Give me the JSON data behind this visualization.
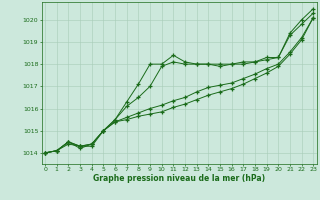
{
  "x": [
    0,
    1,
    2,
    3,
    4,
    5,
    6,
    7,
    8,
    9,
    10,
    11,
    12,
    13,
    14,
    15,
    16,
    17,
    18,
    19,
    20,
    21,
    22,
    23
  ],
  "line1": [
    1014.0,
    1014.1,
    1014.4,
    1014.3,
    1014.3,
    1015.0,
    1015.5,
    1016.3,
    1017.1,
    1018.0,
    1018.0,
    1018.4,
    1018.1,
    1018.0,
    1018.0,
    1017.9,
    1018.0,
    1018.0,
    1018.1,
    1018.3,
    1018.3,
    1019.4,
    1020.0,
    1020.5
  ],
  "line2": [
    1014.0,
    1014.1,
    1014.5,
    1014.2,
    1014.4,
    1015.0,
    1015.5,
    1016.1,
    1016.5,
    1017.0,
    1017.9,
    1018.1,
    1018.0,
    1018.0,
    1018.0,
    1018.0,
    1018.0,
    1018.1,
    1018.1,
    1018.2,
    1018.3,
    1019.3,
    1019.8,
    1020.3
  ],
  "line3": [
    1014.0,
    1014.1,
    1014.5,
    1014.3,
    1014.4,
    1015.0,
    1015.4,
    1015.5,
    1015.65,
    1015.75,
    1015.85,
    1016.05,
    1016.2,
    1016.4,
    1016.6,
    1016.75,
    1016.9,
    1017.1,
    1017.35,
    1017.6,
    1017.9,
    1018.45,
    1019.1,
    1020.1
  ],
  "line4": [
    1014.0,
    1014.1,
    1014.5,
    1014.3,
    1014.4,
    1015.0,
    1015.4,
    1015.6,
    1015.8,
    1016.0,
    1016.15,
    1016.35,
    1016.5,
    1016.75,
    1016.95,
    1017.05,
    1017.15,
    1017.35,
    1017.55,
    1017.8,
    1018.0,
    1018.55,
    1019.2,
    1020.1
  ],
  "ylim": [
    1013.5,
    1020.8
  ],
  "xlim": [
    -0.3,
    23.3
  ],
  "yticks": [
    1014,
    1015,
    1016,
    1017,
    1018,
    1019,
    1020
  ],
  "xticks": [
    0,
    1,
    2,
    3,
    4,
    5,
    6,
    7,
    8,
    9,
    10,
    11,
    12,
    13,
    14,
    15,
    16,
    17,
    18,
    19,
    20,
    21,
    22,
    23
  ],
  "xlabel": "Graphe pression niveau de la mer (hPa)",
  "line_color": "#1a6b1a",
  "bg_color": "#cce8dc",
  "grid_color": "#a8ccb8",
  "marker": "+",
  "marker_size": 3.5,
  "linewidth": 0.7
}
